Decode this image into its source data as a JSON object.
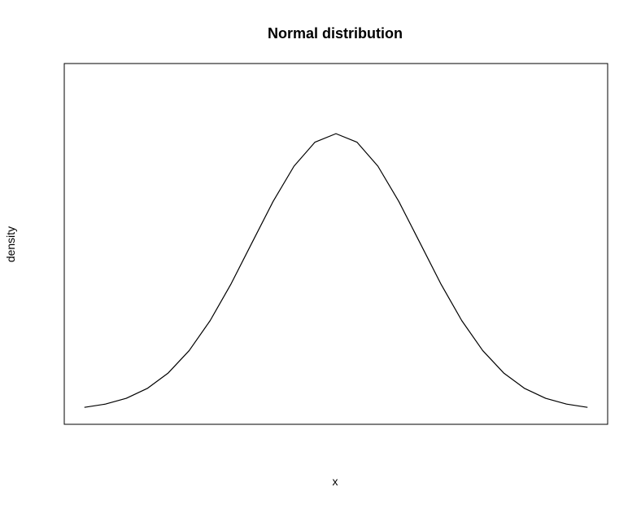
{
  "chart_data": {
    "type": "line",
    "title": "Normal distribution",
    "xlabel": "x",
    "ylabel": "density",
    "xlim": [
      -3.0,
      3.0
    ],
    "ylim": [
      -0.02,
      0.5
    ],
    "axes_ticks_visible": false,
    "grid": false,
    "legend": "none",
    "series": [
      {
        "color": "#000000",
        "x": [
          -3.0,
          -2.75,
          -2.5,
          -2.25,
          -2.0,
          -1.75,
          -1.5,
          -1.25,
          -1.0,
          -0.75,
          -0.5,
          -0.25,
          0.0,
          0.25,
          0.5,
          0.75,
          1.0,
          1.25,
          1.5,
          1.75,
          2.0,
          2.25,
          2.5,
          2.75,
          3.0
        ],
        "y": [
          0.0044,
          0.0091,
          0.0175,
          0.0317,
          0.054,
          0.0863,
          0.1295,
          0.1826,
          0.242,
          0.3011,
          0.3521,
          0.3867,
          0.3989,
          0.3867,
          0.3521,
          0.3011,
          0.242,
          0.1826,
          0.1295,
          0.0863,
          0.054,
          0.0317,
          0.0175,
          0.0091,
          0.0044
        ]
      }
    ]
  }
}
